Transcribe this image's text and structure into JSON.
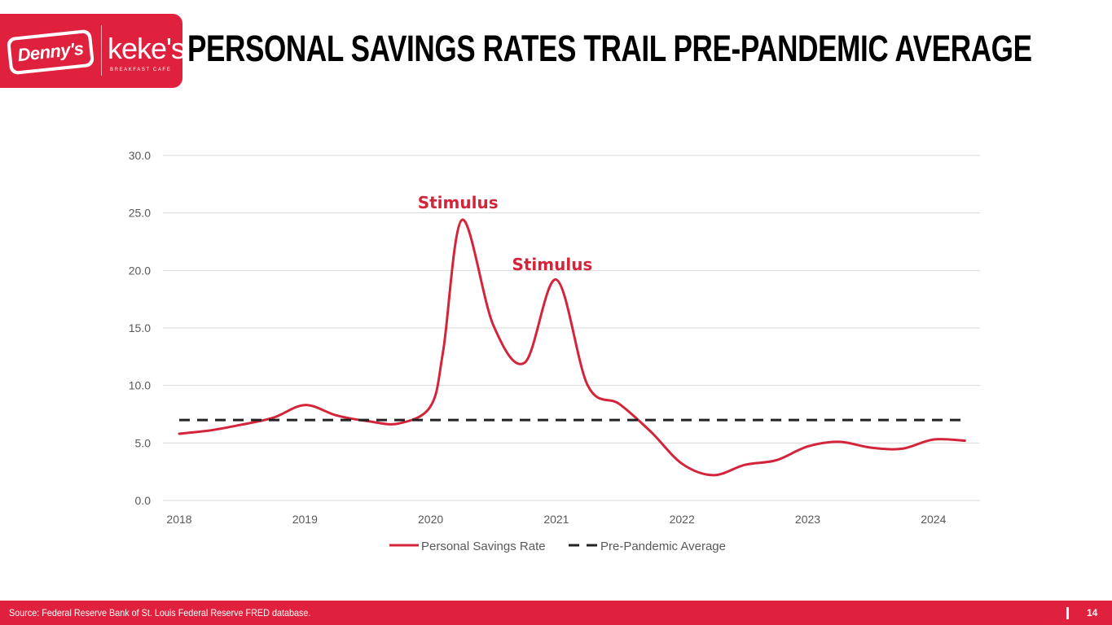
{
  "header": {
    "title": "PERSONAL SAVINGS RATES TRAIL PRE-PANDEMIC AVERAGE",
    "logos": {
      "dennys": "Denny's",
      "kekes": "keke's",
      "kekes_sub": "BREAKFAST CAFE"
    }
  },
  "footer": {
    "source": "Source: Federal Reserve Bank of St. Louis Federal Reserve FRED database.",
    "page_number": "14"
  },
  "colors": {
    "brand_red": "#e0213d",
    "line_red": "#d3243a",
    "average_line": "#222222",
    "grid": "#d9d9d9",
    "axis_text": "#595959"
  },
  "chart_data": {
    "type": "line",
    "title": "",
    "xlabel": "",
    "ylabel": "",
    "x_ticks": [
      2018,
      2019,
      2020,
      2021,
      2022,
      2023,
      2024
    ],
    "x_range": [
      2018,
      2024.26
    ],
    "ylim": [
      0,
      30
    ],
    "y_ticks": [
      "0.0",
      "5.0",
      "10.0",
      "15.0",
      "20.0",
      "25.0",
      "30.0"
    ],
    "grid": true,
    "legend_position": "bottom",
    "series": [
      {
        "name": "Personal Savings Rate",
        "style": "solid",
        "x": [
          2018.0,
          2018.25,
          2018.5,
          2018.75,
          2019.0,
          2019.25,
          2019.5,
          2019.75,
          2020.0,
          2020.1,
          2020.25,
          2020.5,
          2020.75,
          2021.0,
          2021.25,
          2021.5,
          2021.75,
          2022.0,
          2022.25,
          2022.5,
          2022.75,
          2023.0,
          2023.25,
          2023.5,
          2023.75,
          2024.0,
          2024.25
        ],
        "values": [
          5.8,
          6.1,
          6.6,
          7.2,
          8.3,
          7.4,
          6.9,
          6.7,
          8.2,
          13.0,
          24.4,
          15.2,
          12.0,
          19.2,
          10.0,
          8.4,
          6.0,
          3.2,
          2.2,
          3.1,
          3.5,
          4.7,
          5.1,
          4.6,
          4.5,
          5.3,
          5.2
        ]
      },
      {
        "name": "Pre-Pandemic Average",
        "style": "dashed",
        "x": [
          2018.0,
          2024.26
        ],
        "values": [
          7.0,
          7.0
        ]
      }
    ],
    "annotations": [
      {
        "text": "Stimulus",
        "x": 2020.25,
        "y": 25.2
      },
      {
        "text": "Stimulus",
        "x": 2021.0,
        "y": 19.8
      }
    ]
  }
}
